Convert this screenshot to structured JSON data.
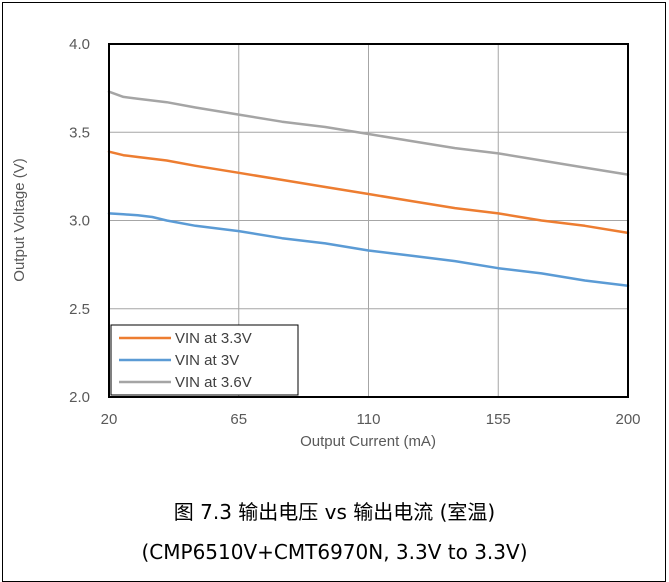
{
  "caption": {
    "line1": "图 7.3 输出电压 vs 输出电流 (室温)",
    "line2": "(CMP6510V+CMT6970N, 3.3V to 3.3V)"
  },
  "chart_data": {
    "type": "line",
    "title": "",
    "xlabel": "Output Current (mA)",
    "ylabel": "Output Voltage (V)",
    "xlim": [
      20,
      200
    ],
    "ylim": [
      2.0,
      4.0
    ],
    "xticks": [
      20,
      65,
      110,
      155,
      200
    ],
    "yticks": [
      2.0,
      2.5,
      3.0,
      3.5,
      4.0
    ],
    "ytick_labels": [
      "2.0",
      "2.5",
      "3.0",
      "3.5",
      "4.0"
    ],
    "grid": true,
    "legend_position": "bottom-left",
    "series": [
      {
        "name": "VIN at 3.3V",
        "color": "#ED7D31",
        "x": [
          20,
          25,
          30,
          35,
          40,
          50,
          65,
          80,
          95,
          110,
          125,
          140,
          155,
          170,
          185,
          200
        ],
        "y": [
          3.39,
          3.37,
          3.36,
          3.35,
          3.34,
          3.31,
          3.27,
          3.23,
          3.19,
          3.15,
          3.11,
          3.07,
          3.04,
          3.0,
          2.97,
          2.93
        ]
      },
      {
        "name": "VIN at 3V",
        "color": "#5B9BD5",
        "x": [
          20,
          25,
          30,
          35,
          40,
          50,
          65,
          80,
          95,
          110,
          125,
          140,
          155,
          170,
          185,
          200
        ],
        "y": [
          3.04,
          3.035,
          3.03,
          3.02,
          3.0,
          2.97,
          2.94,
          2.9,
          2.87,
          2.83,
          2.8,
          2.77,
          2.73,
          2.7,
          2.66,
          2.63
        ]
      },
      {
        "name": "VIN at 3.6V",
        "color": "#A5A5A5",
        "x": [
          20,
          25,
          30,
          35,
          40,
          50,
          65,
          80,
          95,
          110,
          125,
          140,
          155,
          170,
          185,
          200
        ],
        "y": [
          3.73,
          3.7,
          3.69,
          3.68,
          3.67,
          3.64,
          3.6,
          3.56,
          3.53,
          3.49,
          3.45,
          3.41,
          3.38,
          3.34,
          3.3,
          3.26
        ]
      }
    ]
  }
}
